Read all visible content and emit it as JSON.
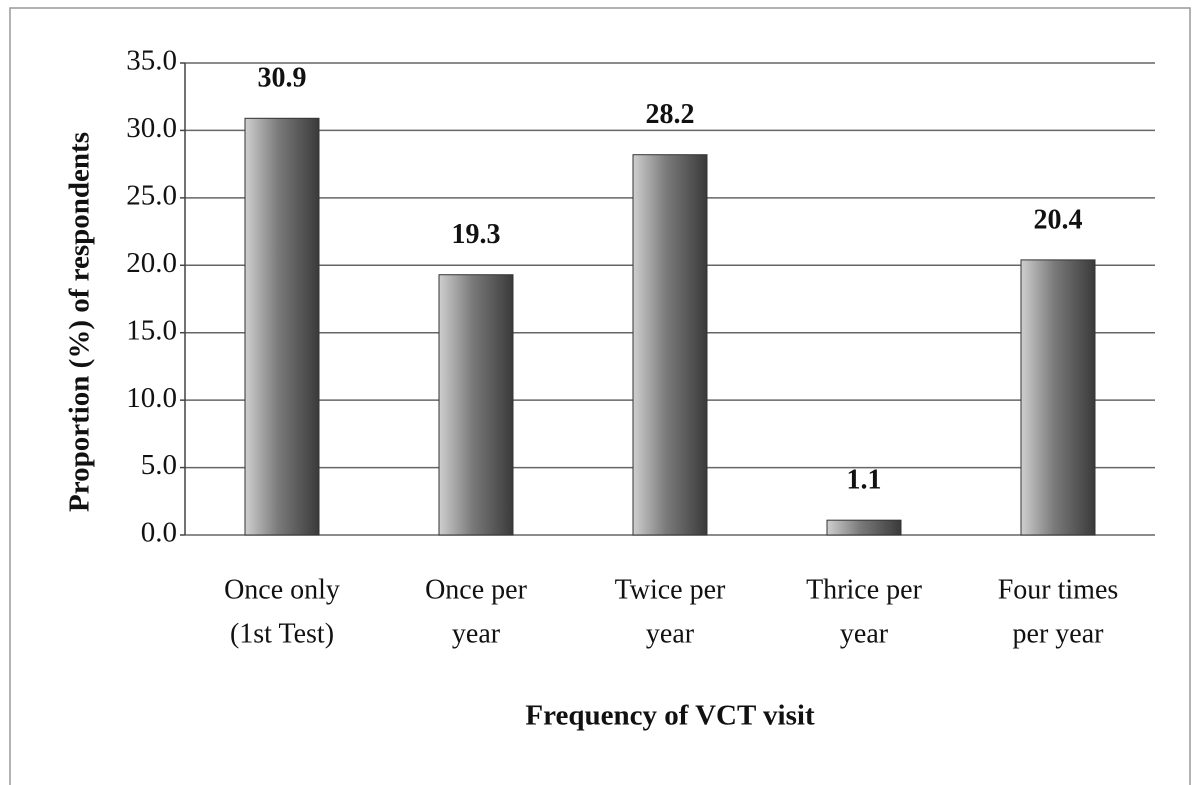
{
  "chart_data": {
    "type": "bar",
    "categories": [
      [
        "Once only",
        "(1st Test)"
      ],
      [
        "Once per",
        "year"
      ],
      [
        "Twice per",
        "year"
      ],
      [
        "Thrice per",
        "year"
      ],
      [
        "Four times",
        "per year"
      ]
    ],
    "values": [
      30.9,
      19.3,
      28.2,
      1.1,
      20.4
    ],
    "color": "#7a7a7a",
    "xlabel": "Frequency of VCT visit",
    "ylabel": "Proportion (%) of respondents",
    "ylim": [
      0,
      35
    ],
    "yticks": [
      {
        "value": 0,
        "label": "0.0"
      },
      {
        "value": 5,
        "label": "5.0"
      },
      {
        "value": 10,
        "label": "10.0"
      },
      {
        "value": 15,
        "label": "15.0"
      },
      {
        "value": 20,
        "label": "20.0"
      },
      {
        "value": 25,
        "label": "25.0"
      },
      {
        "value": 30,
        "label": "30.0"
      },
      {
        "value": 35,
        "label": "35.0"
      }
    ],
    "grid": true
  }
}
